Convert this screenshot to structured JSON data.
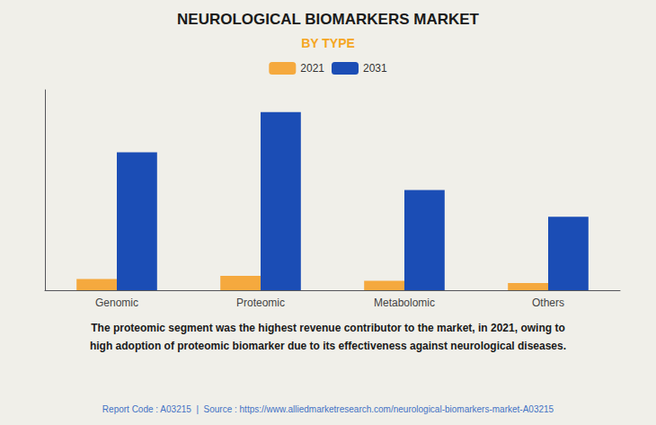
{
  "chart_data": {
    "type": "bar",
    "title": "NEUROLOGICAL BIOMARKERS MARKET",
    "subtitle": "BY TYPE",
    "categories": [
      "Genomic",
      "Proteomic",
      "Metabolomic",
      "Others"
    ],
    "series": [
      {
        "name": "2021",
        "color": "#F5A93E",
        "values": [
          5,
          6.5,
          4.2,
          3.2
        ]
      },
      {
        "name": "2031",
        "color": "#1B4DB5",
        "values": [
          62,
          80,
          45,
          33
        ]
      }
    ],
    "ylim": [
      0,
      90
    ],
    "grid": false,
    "tick_labels": "x",
    "annotations": [
      "The proteomic segment was the highest revenue contributor to the market, in 2021, owing to\nhigh adoption of proteomic biomarker due to its effectiveness against neurological diseases.",
      "Report Code : A03215  |  Source : https://www.alliedmarketresearch.com/neurological-biomarkers-market-A03215"
    ]
  }
}
